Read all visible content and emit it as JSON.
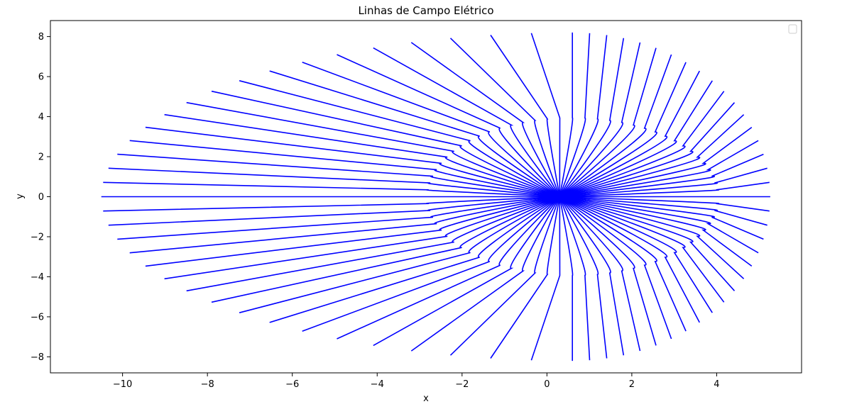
{
  "chart_data": {
    "type": "line",
    "title": "Linhas de Campo Elétrico",
    "xlabel": "x",
    "ylabel": "y",
    "xlim": [
      -11.7,
      6.0
    ],
    "ylim": [
      -8.8,
      8.8
    ],
    "xticks": [
      -10,
      -8,
      -6,
      -4,
      -2,
      0,
      2,
      4
    ],
    "yticks": [
      -8,
      -6,
      -4,
      -2,
      0,
      2,
      4,
      6,
      8
    ],
    "grid": false,
    "legend": "top-right",
    "legend_entries": [],
    "line_color": "#0000ff",
    "field_source": {
      "center": [
        0.3,
        0.0
      ],
      "ellipse_center": [
        0.6,
        0.0
      ],
      "ellipse_semi_axes": [
        3.4,
        3.95
      ],
      "n_lines": 72,
      "outer_radius_x": 11.1,
      "outer_radius_y": 8.2
    }
  }
}
